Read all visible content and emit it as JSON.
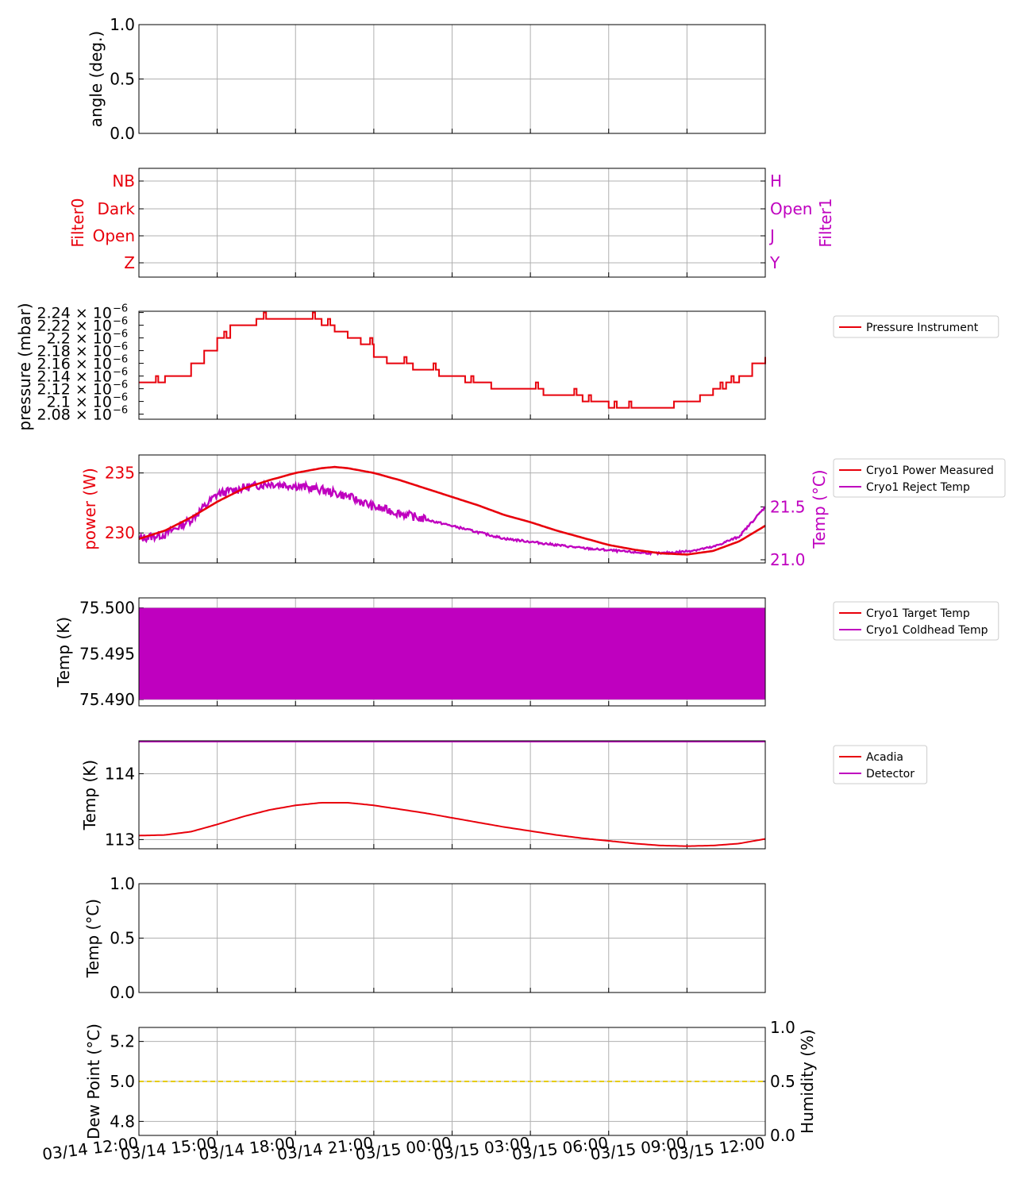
{
  "colors": {
    "red": "#e8000b",
    "purple": "#bf00bf",
    "yellow": "#e6cc00",
    "grid": "#b0b0b0",
    "axis": "#000000"
  },
  "time_ticks": [
    "03/14 12:00",
    "03/14 15:00",
    "03/14 18:00",
    "03/14 21:00",
    "03/15 00:00",
    "03/15 03:00",
    "03/15 06:00",
    "03/15 09:00",
    "03/15 12:00"
  ],
  "chart_data": [
    {
      "id": "angle",
      "type": "line",
      "ylabel": "angle (deg.)",
      "ylim": [
        0.0,
        1.0
      ],
      "yticks": [
        "0.0",
        "0.5",
        "1.0"
      ],
      "series": [],
      "grid": true
    },
    {
      "id": "filters",
      "type": "line",
      "ylabel": "Filter0",
      "ylabel_right": "Filter1",
      "yticks_left": [
        "Z",
        "Open",
        "Dark",
        "NB"
      ],
      "yticks_right": [
        "Y",
        "J",
        "Open",
        "H"
      ],
      "series": [],
      "grid": true
    },
    {
      "id": "pressure",
      "type": "line",
      "ylabel": "pressure (mbar)",
      "ylim": [
        2.072e-06,
        2.242e-06
      ],
      "yticks": [
        "2.08 × 10",
        "2.1 × 10",
        "2.12 × 10",
        "2.14 × 10",
        "2.16 × 10",
        "2.18 × 10",
        "2.2 × 10",
        "2.22 × 10",
        "2.24 × 10"
      ],
      "ytick_exponent": "−6",
      "legend": "right",
      "series": [
        {
          "name": "Pressure Instrument",
          "color": "#e8000b",
          "x_hours": [
            0,
            0.5,
            1.0,
            1.5,
            2.0,
            2.5,
            3.0,
            3.5,
            4.0,
            4.5,
            5.0,
            5.5,
            6.0,
            6.5,
            7.0,
            7.5,
            8.0,
            8.5,
            9.0,
            9.5,
            10.0,
            10.5,
            11.0,
            11.5,
            12.0,
            12.5,
            13.0,
            13.5,
            14.0,
            14.5,
            15.0,
            15.5,
            16.0,
            16.5,
            17.0,
            17.5,
            18.0,
            18.5,
            19.0,
            19.5,
            20.0,
            20.5,
            21.0,
            21.5,
            22.0,
            22.5,
            23.0,
            23.5,
            24.0
          ],
          "values": [
            2.13e-06,
            2.13e-06,
            2.14e-06,
            2.14e-06,
            2.16e-06,
            2.18e-06,
            2.2e-06,
            2.22e-06,
            2.22e-06,
            2.23e-06,
            2.23e-06,
            2.23e-06,
            2.23e-06,
            2.23e-06,
            2.22e-06,
            2.21e-06,
            2.2e-06,
            2.19e-06,
            2.17e-06,
            2.16e-06,
            2.16e-06,
            2.15e-06,
            2.15e-06,
            2.14e-06,
            2.14e-06,
            2.13e-06,
            2.13e-06,
            2.12e-06,
            2.12e-06,
            2.12e-06,
            2.12e-06,
            2.11e-06,
            2.11e-06,
            2.11e-06,
            2.1e-06,
            2.1e-06,
            2.09e-06,
            2.09e-06,
            2.09e-06,
            2.09e-06,
            2.09e-06,
            2.1e-06,
            2.1e-06,
            2.11e-06,
            2.12e-06,
            2.13e-06,
            2.14e-06,
            2.16e-06,
            2.17e-06
          ]
        }
      ],
      "grid": true
    },
    {
      "id": "cryo_power",
      "type": "line",
      "ylabel": "power (W)",
      "ylabel_right": "Temp (°C)",
      "ylim": [
        227.5,
        236.5
      ],
      "yticks": [
        "230",
        "235"
      ],
      "ylim_right": [
        20.97,
        21.99
      ],
      "yticks_right": [
        "21.0",
        "21.5"
      ],
      "legend": "right",
      "series": [
        {
          "name": "Cryo1 Power Measured",
          "axis": "left",
          "color": "#e8000b",
          "x_hours": [
            0,
            1,
            2,
            3,
            4,
            5,
            6,
            7,
            7.5,
            8,
            9,
            10,
            11,
            12,
            13,
            14,
            15,
            16,
            17,
            18,
            19,
            20,
            21,
            22,
            23,
            24
          ],
          "values": [
            229.5,
            230.2,
            231.3,
            232.6,
            233.7,
            234.4,
            235.0,
            235.4,
            235.5,
            235.4,
            235.0,
            234.4,
            233.7,
            233.0,
            232.3,
            231.5,
            230.9,
            230.2,
            229.6,
            229.0,
            228.6,
            228.3,
            228.2,
            228.5,
            229.3,
            230.6
          ]
        },
        {
          "name": "Cryo1 Reject Temp",
          "axis": "right",
          "color": "#bf00bf",
          "x_hours": [
            0,
            1,
            2,
            3,
            4,
            5,
            6,
            7,
            8,
            9,
            10,
            11,
            12,
            13,
            14,
            15,
            16,
            17,
            18,
            19,
            20,
            21,
            22,
            23,
            24
          ],
          "values": [
            21.2,
            21.24,
            21.38,
            21.62,
            21.68,
            21.72,
            21.7,
            21.66,
            21.6,
            21.5,
            21.44,
            21.38,
            21.32,
            21.26,
            21.2,
            21.17,
            21.14,
            21.11,
            21.09,
            21.07,
            21.06,
            21.08,
            21.12,
            21.22,
            21.5
          ]
        }
      ],
      "grid": true
    },
    {
      "id": "cryo_temp",
      "type": "line",
      "ylabel": "Temp (K)",
      "ylim": [
        75.4893,
        75.5011
      ],
      "yticks": [
        "75.490",
        "75.495",
        "75.500"
      ],
      "legend": "right",
      "series": [
        {
          "name": "Cryo1 Target Temp",
          "color": "#e8000b",
          "values": [
            75.5,
            75.5
          ]
        },
        {
          "name": "Cryo1 Coldhead Temp",
          "color": "#bf00bf",
          "range": [
            75.49,
            75.5
          ],
          "note_oscillating": true
        }
      ],
      "grid": true
    },
    {
      "id": "acadia",
      "type": "line",
      "ylabel": "Temp (K)",
      "ylim": [
        112.86,
        114.5
      ],
      "yticks": [
        "113",
        "114"
      ],
      "legend": "right",
      "series": [
        {
          "name": "Acadia",
          "color": "#e8000b",
          "x_hours": [
            0,
            1,
            2,
            3,
            4,
            5,
            6,
            7,
            8,
            9,
            10,
            11,
            12,
            13,
            14,
            15,
            16,
            17,
            18,
            19,
            20,
            21,
            22,
            23,
            24
          ],
          "values": [
            113.06,
            113.07,
            113.12,
            113.23,
            113.35,
            113.45,
            113.52,
            113.56,
            113.56,
            113.52,
            113.46,
            113.4,
            113.33,
            113.26,
            113.19,
            113.13,
            113.07,
            113.02,
            112.98,
            112.94,
            112.91,
            112.9,
            112.91,
            112.94,
            113.01
          ]
        },
        {
          "name": "Detector",
          "color": "#bf00bf",
          "values": [
            114.5,
            114.5
          ]
        }
      ],
      "grid": true
    },
    {
      "id": "ambient",
      "type": "line",
      "ylabel": "Temp (°C)",
      "ylim": [
        0.0,
        1.0
      ],
      "yticks": [
        "0.0",
        "0.5",
        "1.0"
      ],
      "series": [],
      "grid": true
    },
    {
      "id": "dewpoint",
      "type": "line",
      "ylabel": "Dew Point (°C)",
      "ylabel_right": "Humidity (%)",
      "ylim": [
        4.73,
        5.27
      ],
      "yticks": [
        "4.8",
        "5.0",
        "5.2"
      ],
      "ylim_right": [
        0.0,
        1.0
      ],
      "yticks_right": [
        "0.0",
        "0.5",
        "1.0"
      ],
      "series": [
        {
          "color": "#e6cc00",
          "dashed": true,
          "values": [
            5.0,
            5.0
          ]
        }
      ],
      "grid": true
    }
  ]
}
